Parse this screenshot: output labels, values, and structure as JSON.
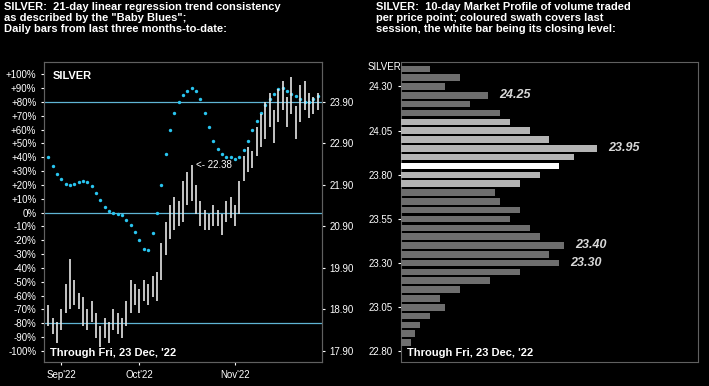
{
  "chart_data": [
    {
      "type": "range_bar_with_dots",
      "title": "SILVER:  21-day linear regression trend consistency\nas described by the \"Baby Blues\";\nDaily bars from last three months-to-date:",
      "inset_title": "SILVER",
      "footnote": "Through Fri, 23 Dec, '22",
      "categories": [
        null,
        null,
        null,
        "Sep'22",
        null,
        null,
        null,
        null,
        null,
        null,
        null,
        null,
        null,
        null,
        null,
        null,
        null,
        null,
        null,
        null,
        null,
        "Oct'22",
        null,
        null,
        null,
        null,
        null,
        null,
        null,
        null,
        null,
        null,
        null,
        null,
        null,
        null,
        null,
        null,
        null,
        null,
        null,
        null,
        null,
        "Nov'22",
        null,
        null,
        null,
        null,
        null,
        null,
        null,
        null,
        null,
        null,
        null,
        null,
        null,
        null,
        null,
        null,
        null,
        null,
        null
      ],
      "ylim": [
        -108,
        109
      ],
      "yticks": [
        {
          "value": 100,
          "label": "+100%"
        },
        {
          "value": 90,
          "label": "+90%"
        },
        {
          "value": 80,
          "label": "+80%"
        },
        {
          "value": 70,
          "label": "+70%"
        },
        {
          "value": 60,
          "label": "+60%"
        },
        {
          "value": 50,
          "label": "+50%"
        },
        {
          "value": 40,
          "label": "+40%"
        },
        {
          "value": 30,
          "label": "+30%"
        },
        {
          "value": 20,
          "label": "+20%"
        },
        {
          "value": 10,
          "label": "+10%"
        },
        {
          "value": 0,
          "label": "0%"
        },
        {
          "value": -10,
          "label": "-10%"
        },
        {
          "value": -20,
          "label": "-20%"
        },
        {
          "value": -30,
          "label": "-30%"
        },
        {
          "value": -40,
          "label": "-40%"
        },
        {
          "value": -50,
          "label": "-50%"
        },
        {
          "value": -60,
          "label": "-60%"
        },
        {
          "value": -70,
          "label": "-70%"
        },
        {
          "value": -80,
          "label": "-80%"
        },
        {
          "value": -90,
          "label": "-90%"
        },
        {
          "value": -100,
          "label": "-100%"
        }
      ],
      "y2lim": [
        17.63,
        24.86
      ],
      "y2ticks": [
        {
          "value": 17.9,
          "label": "17.90"
        },
        {
          "value": 18.9,
          "label": "18.90"
        },
        {
          "value": 19.9,
          "label": "19.90"
        },
        {
          "value": 20.9,
          "label": "20.90"
        },
        {
          "value": 21.9,
          "label": "21.90"
        },
        {
          "value": 22.9,
          "label": "22.90"
        },
        {
          "value": 23.9,
          "label": "23.90"
        }
      ],
      "reference_lines": {
        "values": [
          80,
          0,
          -80
        ],
        "color": "#5fb4d4"
      },
      "annotation": {
        "text": "<- 22.38",
        "value": 22.38
      },
      "series": [
        {
          "type": "range_bar",
          "axis": "y2",
          "color": "#e6e6e6",
          "high": [
            19.0,
            18.7,
            18.6,
            18.9,
            19.5,
            20.1,
            19.6,
            19.3,
            19.2,
            18.9,
            19.1,
            18.8,
            18.5,
            18.7,
            18.6,
            18.9,
            18.8,
            18.7,
            19.1,
            19.6,
            19.5,
            19.4,
            19.6,
            19.5,
            19.7,
            19.8,
            20.5,
            21.0,
            21.4,
            21.6,
            21.5,
            22.0,
            22.2,
            22.38,
            21.9,
            21.5,
            21.3,
            21.2,
            21.4,
            21.3,
            21.2,
            21.5,
            21.6,
            21.4,
            22.0,
            22.6,
            22.8,
            22.7,
            23.3,
            23.6,
            23.9,
            24.1,
            23.7,
            24.2,
            24.4,
            24.0,
            24.5,
            23.8,
            24.3,
            24.4,
            24.1,
            24.0,
            24.1
          ],
          "low": [
            18.5,
            18.3,
            18.1,
            18.4,
            18.8,
            18.9,
            19.0,
            18.9,
            18.5,
            18.4,
            18.6,
            18.2,
            18.0,
            18.2,
            18.1,
            18.4,
            18.3,
            18.2,
            18.5,
            18.8,
            19.0,
            18.8,
            19.1,
            19.0,
            19.2,
            19.1,
            19.6,
            20.2,
            20.6,
            20.8,
            20.9,
            21.0,
            21.4,
            21.5,
            21.2,
            20.9,
            20.8,
            20.8,
            20.9,
            20.9,
            20.7,
            21.0,
            21.1,
            20.9,
            21.2,
            22.0,
            22.2,
            22.3,
            22.6,
            22.8,
            23.0,
            23.3,
            22.9,
            23.4,
            23.7,
            23.3,
            23.6,
            23.0,
            23.4,
            23.7,
            23.5,
            23.6,
            23.7
          ]
        },
        {
          "type": "scatter",
          "color": "#29c5f0",
          "marker": "o",
          "values": [
            40,
            34,
            28,
            24,
            21,
            20,
            21,
            22,
            23,
            22,
            19,
            14,
            9,
            4,
            1,
            0,
            -1,
            -2,
            -5,
            -9,
            -14,
            -20,
            -26,
            -27,
            -15,
            0,
            20,
            42,
            60,
            72,
            80,
            85,
            88,
            90,
            88,
            82,
            72,
            62,
            52,
            46,
            42,
            40,
            40,
            39,
            40,
            45,
            52,
            60,
            66,
            72,
            78,
            82,
            86,
            89,
            90,
            88,
            86,
            84,
            82,
            80,
            80,
            82,
            84
          ]
        }
      ]
    },
    {
      "type": "bar",
      "orientation": "horizontal",
      "title": "SILVER:  10-day Market Profile of volume traded\nper price point; coloured swath covers last\nsession, the white bar being its closing level:",
      "inset_title": "SILVER",
      "footnote": "Through Fri, 23 Dec, '22",
      "y": [
        24.4,
        24.35,
        24.3,
        24.25,
        24.2,
        24.15,
        24.1,
        24.05,
        24.0,
        23.95,
        23.9,
        23.85,
        23.8,
        23.75,
        23.7,
        23.65,
        23.6,
        23.55,
        23.5,
        23.45,
        23.4,
        23.35,
        23.3,
        23.25,
        23.2,
        23.15,
        23.1,
        23.05,
        23.0,
        22.95,
        22.9,
        22.85
      ],
      "values": [
        30,
        60,
        45,
        88,
        70,
        100,
        110,
        130,
        150,
        198,
        175,
        160,
        140,
        120,
        95,
        100,
        120,
        110,
        130,
        140,
        165,
        150,
        160,
        120,
        90,
        60,
        40,
        45,
        30,
        20,
        15,
        10
      ],
      "color": "#6e6e6e",
      "last_session": {
        "low": 23.75,
        "high": 24.1,
        "color": "#b4b4b4"
      },
      "close": {
        "value": 23.85,
        "color": "#ffffff"
      },
      "price_labels": [
        {
          "value": 24.25,
          "label": "24.25"
        },
        {
          "value": 23.95,
          "label": "23.95"
        },
        {
          "value": 23.4,
          "label": "23.40"
        },
        {
          "value": 23.3,
          "label": "23.30"
        }
      ],
      "xlim": [
        0,
        300
      ],
      "ylim": [
        22.74,
        24.44
      ],
      "yticks": [
        {
          "value": 24.3,
          "label": "24.30"
        },
        24.05,
        {
          "value": 23.8,
          "label": "23.80"
        },
        23.55,
        {
          "value": 23.3,
          "label": "23.30"
        },
        23.05,
        {
          "value": 22.8,
          "label": "22.80"
        }
      ],
      "tick_labels": "y"
    }
  ]
}
